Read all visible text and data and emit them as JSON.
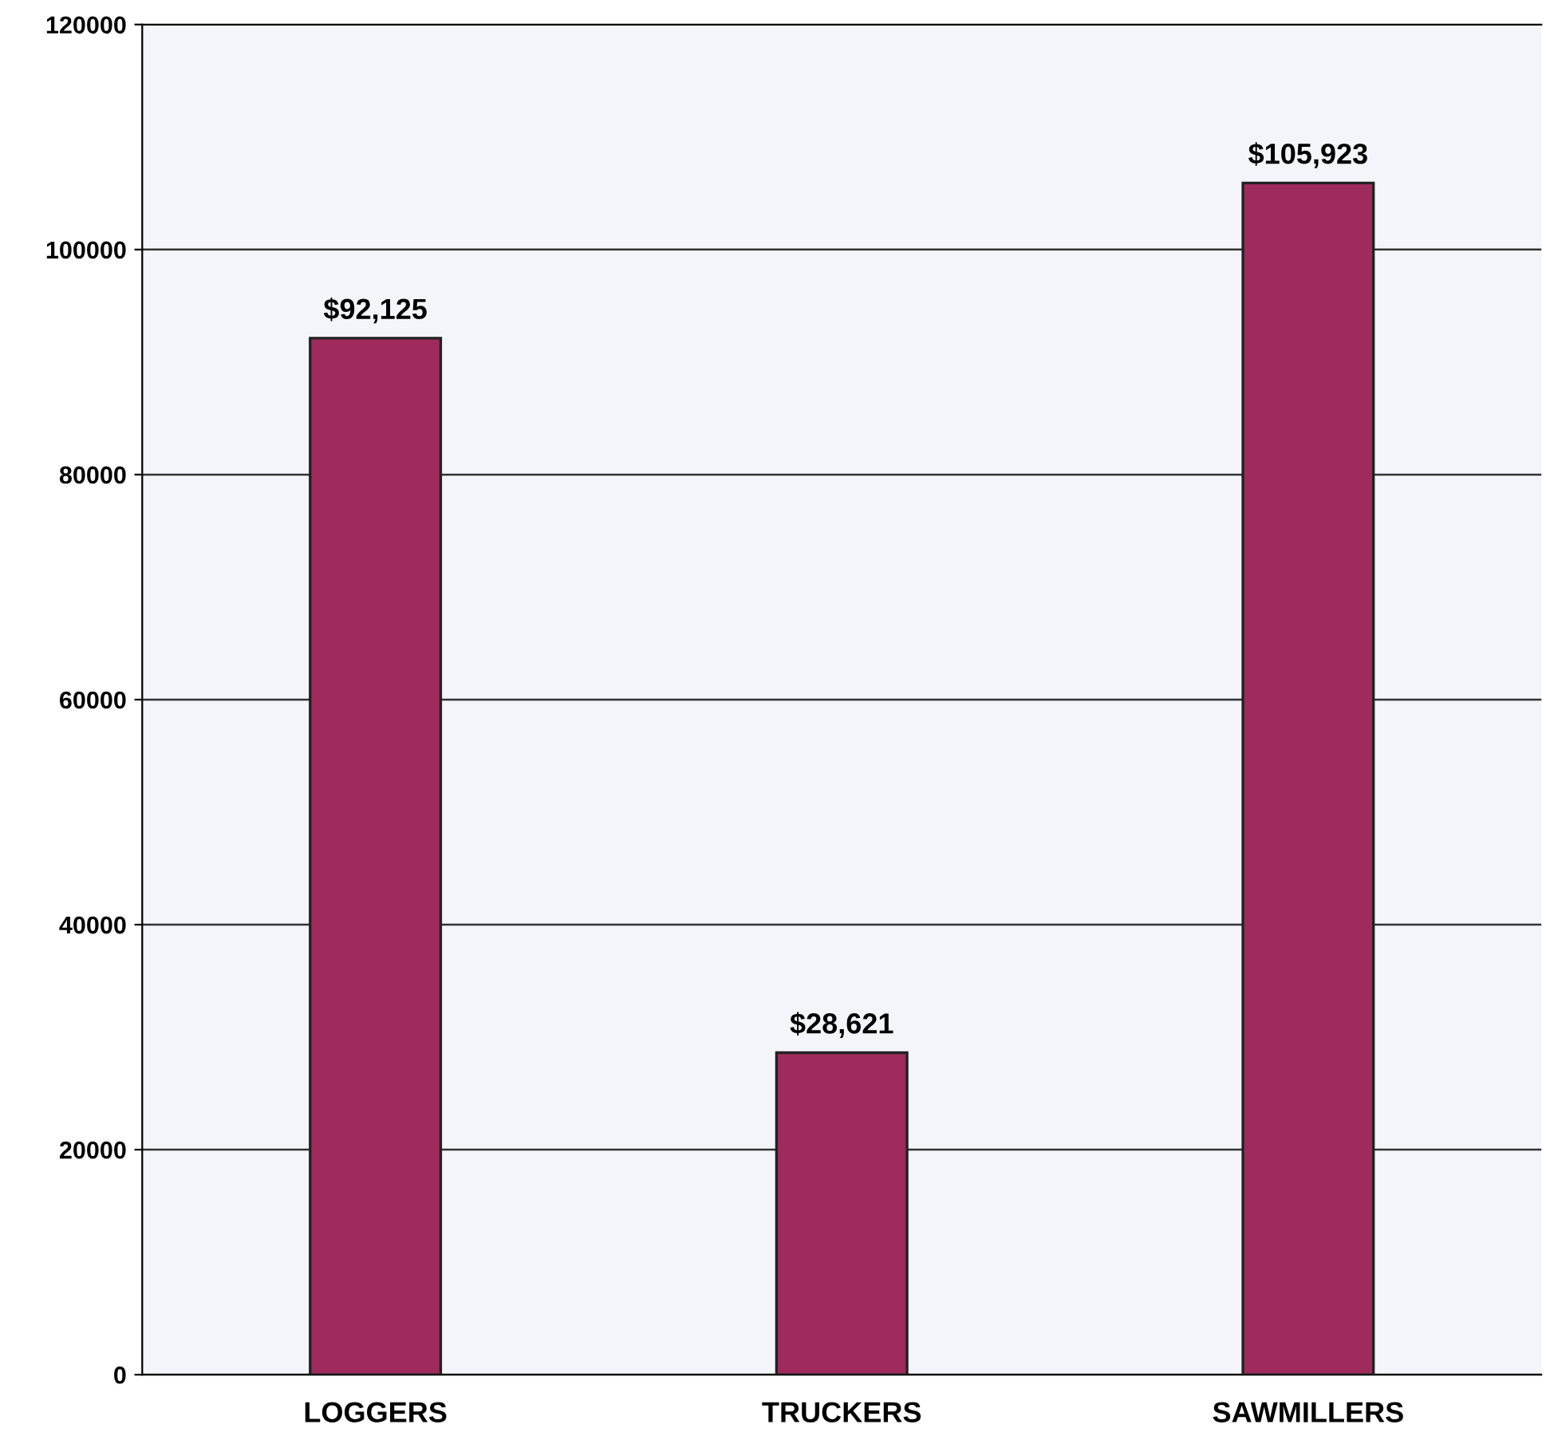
{
  "chart_data": {
    "type": "bar",
    "categories": [
      "LOGGERS",
      "TRUCKERS",
      "SAWMILLERS"
    ],
    "values": [
      92125,
      28621,
      105923
    ],
    "value_labels": [
      "$92,125",
      "$28,621",
      "$105,923"
    ],
    "color": "#9e2b5c",
    "ylim": [
      0,
      120000
    ],
    "yticks": [
      0,
      20000,
      40000,
      60000,
      80000,
      100000,
      120000
    ],
    "grid": "y",
    "legend": false
  }
}
